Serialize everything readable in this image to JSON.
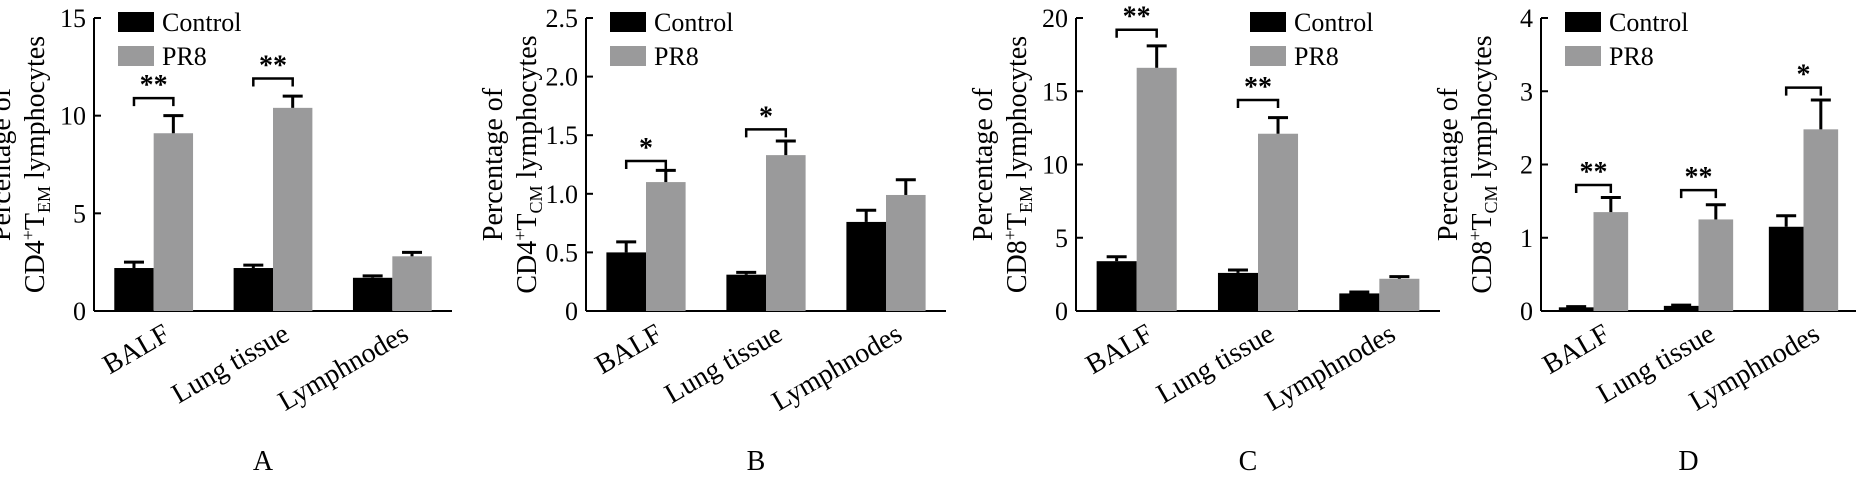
{
  "figure": {
    "panel_letters": [
      "A",
      "B",
      "C",
      "D"
    ]
  },
  "colors": {
    "control": "#000000",
    "pr8": "#9a9a9b",
    "axis": "#000000"
  },
  "chart_data": [
    {
      "type": "bar",
      "panel": "A",
      "ylabel": {
        "line1": "Percentage of",
        "prefix": "CD4",
        "sup": "+",
        "t": "T",
        "sub": "EM",
        "suffix": " lymphocytes"
      },
      "categories": [
        "BALF",
        "Lung tissue",
        "Lymphnodes"
      ],
      "ylim": [
        0,
        15
      ],
      "yticks": [
        0,
        5,
        10,
        15
      ],
      "tick_labels": [
        "0",
        "5",
        "10",
        "15"
      ],
      "legend": {
        "placement": "top-left",
        "entries": [
          "Control",
          "PR8"
        ]
      },
      "series": [
        {
          "name": "Control",
          "values": [
            2.2,
            2.2,
            1.7
          ],
          "errors": [
            0.3,
            0.15,
            0.1
          ]
        },
        {
          "name": "PR8",
          "values": [
            9.1,
            10.4,
            2.8
          ],
          "errors": [
            0.9,
            0.6,
            0.2
          ]
        }
      ],
      "significance": [
        {
          "category": 0,
          "label": "**",
          "y": 10.9
        },
        {
          "category": 1,
          "label": "**",
          "y": 11.9
        }
      ]
    },
    {
      "type": "bar",
      "panel": "B",
      "ylabel": {
        "line1": "Percentage of",
        "prefix": "CD4",
        "sup": "+",
        "t": "T",
        "sub": "CM",
        "suffix": " lymphocytes"
      },
      "categories": [
        "BALF",
        "Lung tissue",
        "Lymphnodes"
      ],
      "ylim": [
        0,
        2.5
      ],
      "yticks": [
        0,
        0.5,
        1.0,
        1.5,
        2.0,
        2.5
      ],
      "tick_labels": [
        "0",
        "0.5",
        "1.0",
        "1.5",
        "2.0",
        "2.5"
      ],
      "legend": {
        "placement": "top-left",
        "entries": [
          "Control",
          "PR8"
        ]
      },
      "series": [
        {
          "name": "Control",
          "values": [
            0.5,
            0.31,
            0.76
          ],
          "errors": [
            0.09,
            0.02,
            0.1
          ]
        },
        {
          "name": "PR8",
          "values": [
            1.1,
            1.33,
            0.99
          ],
          "errors": [
            0.1,
            0.12,
            0.13
          ]
        }
      ],
      "significance": [
        {
          "category": 0,
          "label": "*",
          "y": 1.28
        },
        {
          "category": 1,
          "label": "*",
          "y": 1.55
        }
      ]
    },
    {
      "type": "bar",
      "panel": "C",
      "ylabel": {
        "line1": "Percentage of",
        "prefix": "CD8",
        "sup": "+",
        "t": "T",
        "sub": "EM",
        "suffix": " lymphocytes"
      },
      "categories": [
        "BALF",
        "Lung tissue",
        "Lymphnodes"
      ],
      "ylim": [
        0,
        20
      ],
      "yticks": [
        0,
        5,
        10,
        15,
        20
      ],
      "tick_labels": [
        "0",
        "5",
        "10",
        "15",
        "20"
      ],
      "legend": {
        "placement": "top-right",
        "entries": [
          "Control",
          "PR8"
        ]
      },
      "series": [
        {
          "name": "Control",
          "values": [
            3.4,
            2.6,
            1.2
          ],
          "errors": [
            0.3,
            0.2,
            0.1
          ]
        },
        {
          "name": "PR8",
          "values": [
            16.6,
            12.1,
            2.2
          ],
          "errors": [
            1.5,
            1.1,
            0.15
          ]
        }
      ],
      "significance": [
        {
          "category": 0,
          "label": "**",
          "y": 19.2
        },
        {
          "category": 1,
          "label": "**",
          "y": 14.4
        }
      ]
    },
    {
      "type": "bar",
      "panel": "D",
      "ylabel": {
        "line1": "Percentage of",
        "prefix": "CD8",
        "sup": "+",
        "t": "T",
        "sub": "CM",
        "suffix": " lymphocytes"
      },
      "categories": [
        "BALF",
        "Lung tissue",
        "Lymphnodes"
      ],
      "ylim": [
        0,
        4
      ],
      "yticks": [
        0,
        1,
        2,
        3,
        4
      ],
      "tick_labels": [
        "0",
        "1",
        "2",
        "3",
        "4"
      ],
      "legend": {
        "placement": "top-left",
        "entries": [
          "Control",
          "PR8"
        ]
      },
      "series": [
        {
          "name": "Control",
          "values": [
            0.05,
            0.07,
            1.15
          ],
          "errors": [
            0.01,
            0.01,
            0.15
          ]
        },
        {
          "name": "PR8",
          "values": [
            1.35,
            1.25,
            2.48
          ],
          "errors": [
            0.2,
            0.2,
            0.4
          ]
        }
      ],
      "significance": [
        {
          "category": 0,
          "label": "**",
          "y": 1.72
        },
        {
          "category": 1,
          "label": "**",
          "y": 1.65
        },
        {
          "category": 2,
          "label": "*",
          "y": 3.05
        }
      ]
    }
  ]
}
